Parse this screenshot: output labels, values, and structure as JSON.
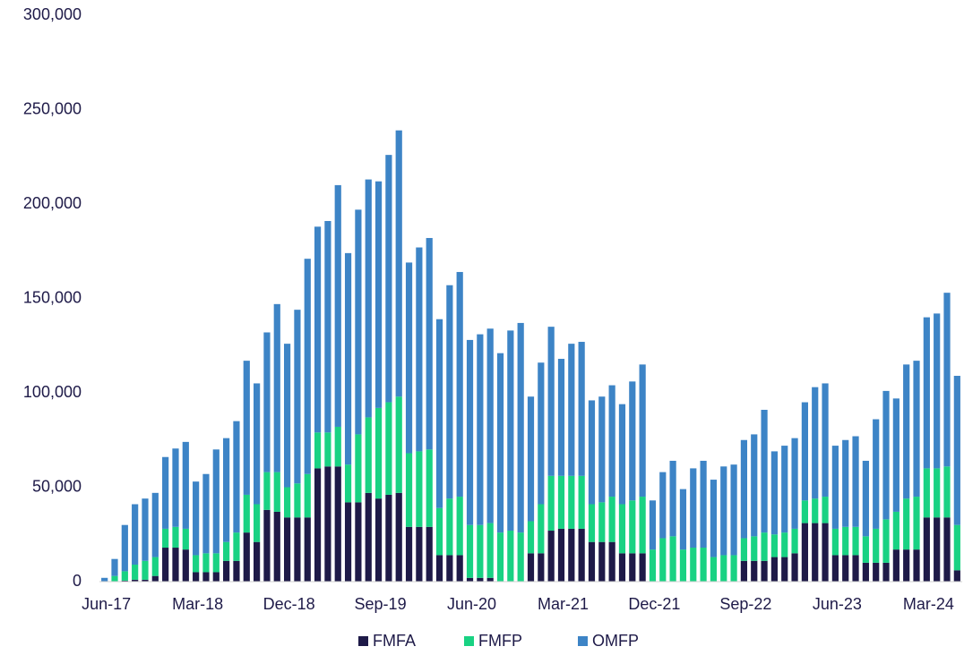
{
  "chart_data": {
    "type": "stacked_bar",
    "categories": [
      "Jun-17",
      null,
      null,
      null,
      null,
      null,
      null,
      null,
      null,
      "Mar-18",
      null,
      null,
      null,
      null,
      null,
      null,
      null,
      null,
      "Dec-18",
      null,
      null,
      null,
      null,
      null,
      null,
      null,
      null,
      "Sep-19",
      null,
      null,
      null,
      null,
      null,
      null,
      null,
      null,
      "Jun-20",
      null,
      null,
      null,
      null,
      null,
      null,
      null,
      null,
      "Mar-21",
      null,
      null,
      null,
      null,
      null,
      null,
      null,
      null,
      "Dec-21",
      null,
      null,
      null,
      null,
      null,
      null,
      null,
      null,
      "Sep-22",
      null,
      null,
      null,
      null,
      null,
      null,
      null,
      null,
      "Jun-23",
      null,
      null,
      null,
      null,
      null,
      null,
      null,
      null,
      "Mar-24",
      null,
      null,
      null
    ],
    "series": [
      {
        "name": "FMFA",
        "color": "#1e1a48",
        "values": [
          0,
          0,
          500,
          1000,
          1000,
          3000,
          18000,
          18000,
          17000,
          5000,
          5000,
          5000,
          11000,
          11000,
          26000,
          21000,
          38000,
          37000,
          34000,
          34000,
          34000,
          60000,
          61000,
          61000,
          42000,
          42000,
          47000,
          44000,
          46000,
          47000,
          29000,
          29000,
          29000,
          14000,
          14000,
          14000,
          2000,
          2000,
          2000,
          0,
          0,
          0,
          15000,
          15000,
          27000,
          28000,
          28000,
          28000,
          21000,
          21000,
          21000,
          15000,
          15000,
          15000,
          0,
          0,
          0,
          0,
          0,
          0,
          0,
          0,
          0,
          11000,
          11000,
          11000,
          13000,
          13000,
          15000,
          31000,
          31000,
          31000,
          14000,
          14000,
          14000,
          10000,
          10000,
          10000,
          17000,
          17000,
          17000,
          34000,
          34000,
          34000,
          6000
        ]
      },
      {
        "name": "FMFP",
        "color": "#19d283",
        "values": [
          0,
          3000,
          5000,
          8000,
          10000,
          10000,
          10000,
          11000,
          11000,
          9000,
          10000,
          10000,
          10000,
          15000,
          20000,
          20000,
          20000,
          21000,
          16000,
          18000,
          23000,
          19000,
          18000,
          21000,
          20000,
          36000,
          40000,
          48000,
          49000,
          51000,
          39000,
          40000,
          41000,
          25000,
          30000,
          31000,
          28000,
          28000,
          29000,
          26000,
          27000,
          26000,
          17000,
          26000,
          29000,
          28000,
          28000,
          28000,
          20000,
          21000,
          24000,
          26000,
          28000,
          30000,
          17000,
          23000,
          24000,
          17000,
          18000,
          18000,
          13000,
          14000,
          14000,
          12000,
          13000,
          15000,
          12000,
          13000,
          13000,
          12000,
          13000,
          14000,
          14000,
          15000,
          15000,
          14000,
          18000,
          23000,
          20000,
          27000,
          28000,
          26000,
          26000,
          27000,
          24000
        ]
      },
      {
        "name": "OMFP",
        "color": "#3d84c6",
        "values": [
          2000,
          9000,
          24500,
          32000,
          33000,
          34000,
          38000,
          41500,
          46000,
          39000,
          42000,
          55000,
          55000,
          59000,
          71000,
          64000,
          74000,
          89000,
          76000,
          92000,
          114000,
          109000,
          112000,
          128000,
          112000,
          119000,
          126000,
          120000,
          131000,
          141000,
          101000,
          108000,
          112000,
          100000,
          113000,
          119000,
          98000,
          101000,
          103000,
          95000,
          106000,
          111000,
          66000,
          75000,
          79000,
          62000,
          70000,
          71000,
          55000,
          56000,
          59000,
          53000,
          63000,
          70000,
          26000,
          35000,
          40000,
          32000,
          42000,
          46000,
          41000,
          47000,
          48000,
          52000,
          54000,
          65000,
          44000,
          46000,
          48000,
          52000,
          59000,
          60000,
          44000,
          46000,
          48000,
          40000,
          58000,
          68000,
          60000,
          71000,
          72000,
          80000,
          82000,
          92000,
          79000
        ]
      }
    ],
    "ylim": [
      0,
      300000
    ],
    "yticks": [
      0,
      {
        "value": 50000,
        "label": "50,000"
      },
      {
        "value": 100000,
        "label": "100,000"
      },
      {
        "value": 150000,
        "label": "150,000"
      },
      {
        "value": 200000,
        "label": "200,000"
      },
      {
        "value": 250000,
        "label": "250,000"
      },
      {
        "value": 300000,
        "label": "300,000"
      }
    ],
    "legend": "bottom"
  }
}
